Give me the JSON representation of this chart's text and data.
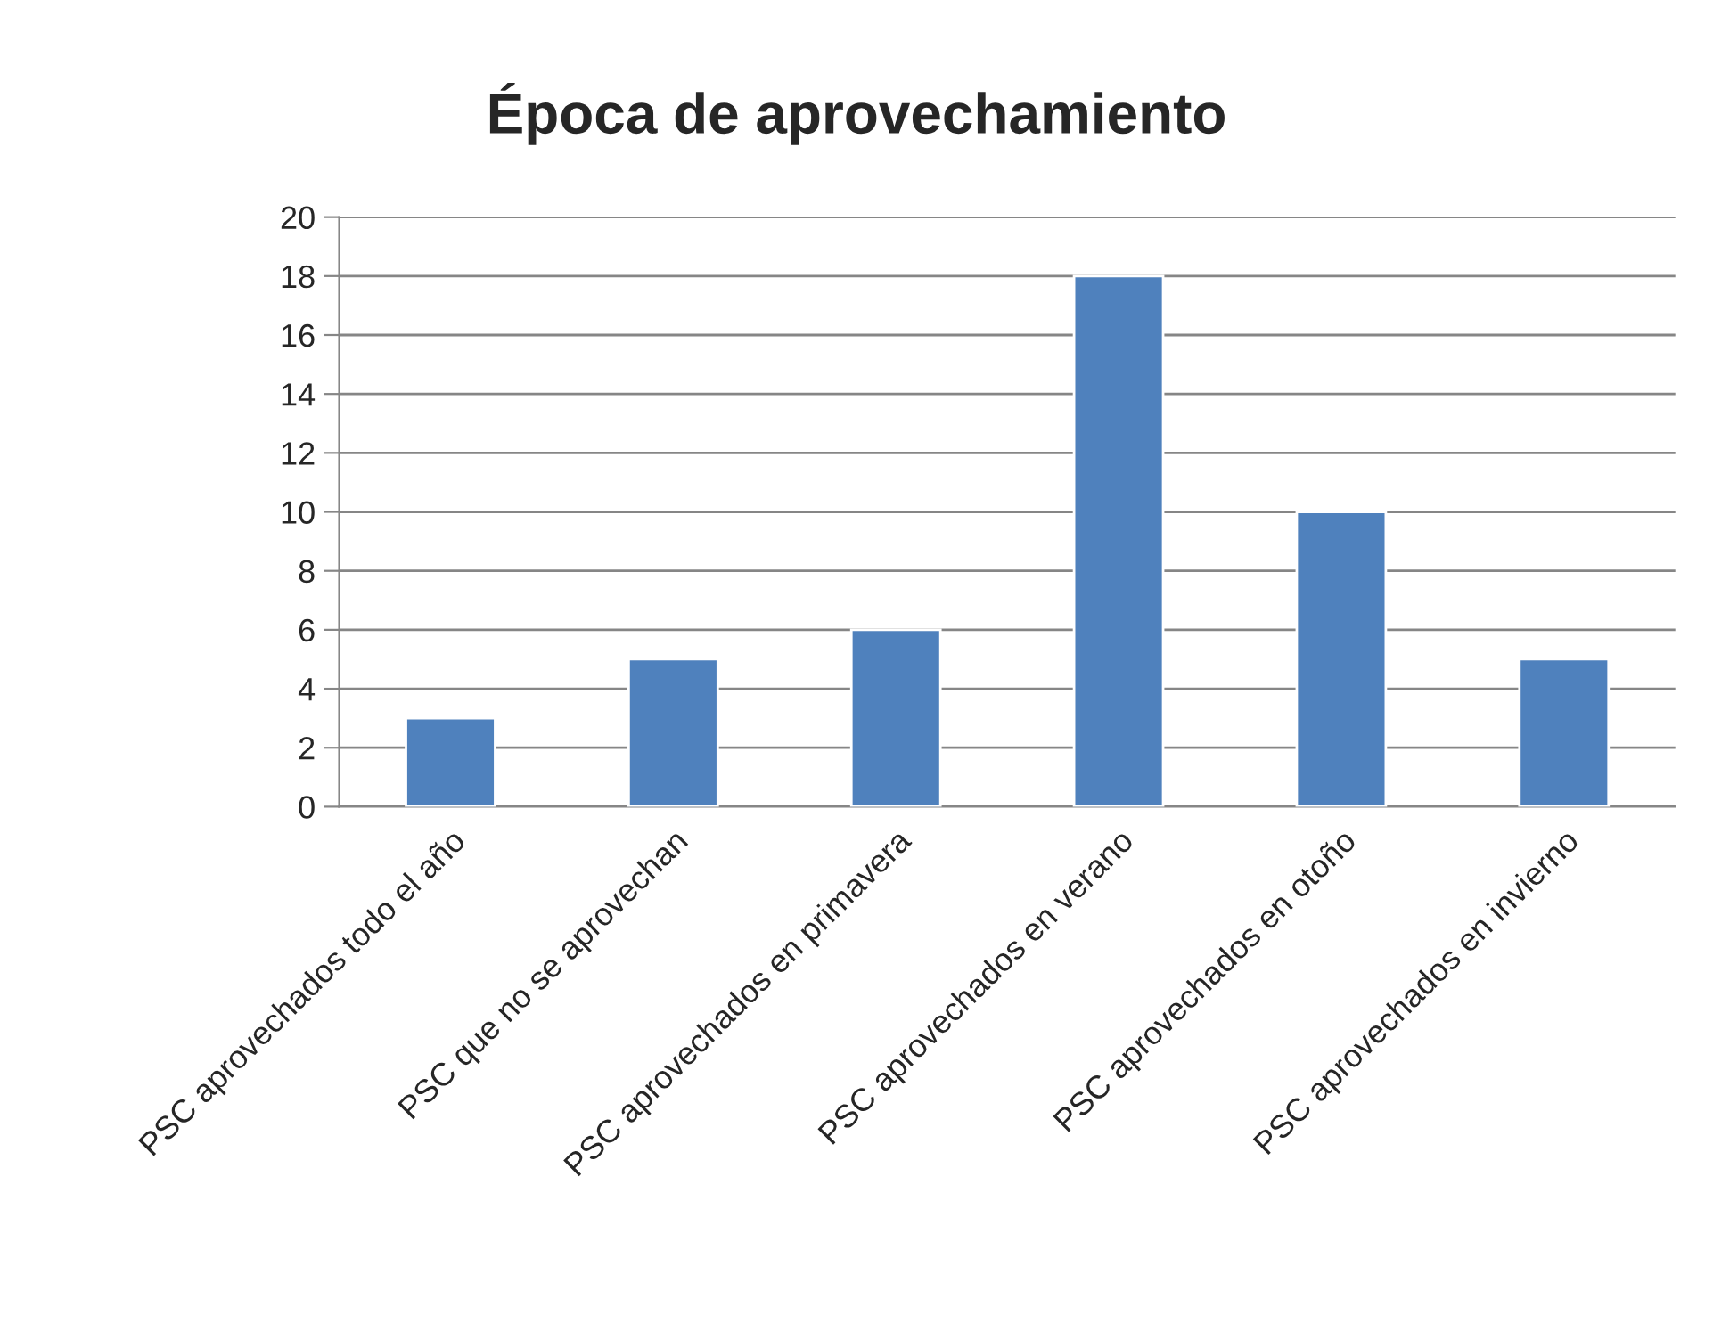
{
  "chart_data": {
    "type": "bar",
    "title": "Época de aprovechamiento",
    "categories": [
      "PSC aprovechados todo el año",
      "PSC que no se aprovechan",
      "PSC aprovechados en primavera",
      "PSC aprovechados en verano",
      "PSC aprovechados en otoño",
      "PSC aprovechados en invierno"
    ],
    "values": [
      3,
      5,
      6,
      18,
      10,
      5
    ],
    "color": "#4f81bd",
    "ylim": [
      0,
      20
    ],
    "yticks": [
      0,
      2,
      4,
      6,
      8,
      10,
      12,
      14,
      16,
      18,
      20
    ],
    "grid": "y",
    "legend": false
  }
}
